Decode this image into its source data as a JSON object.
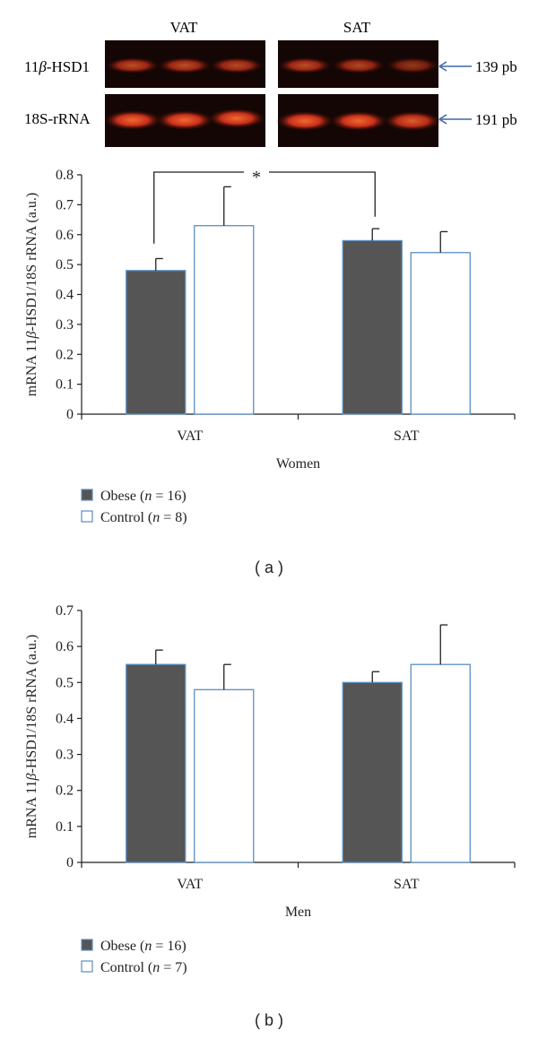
{
  "gel": {
    "lane_headers": [
      "VAT",
      "SAT"
    ],
    "rows": [
      {
        "prefix": "11",
        "italic": "β",
        "suffix": "-HSD1",
        "size_label": "139 pb"
      },
      {
        "prefix": "18S-rRNA",
        "italic": "",
        "suffix": "",
        "size_label": "191 pb"
      }
    ]
  },
  "colors": {
    "obese_fill": "#555555",
    "control_fill": "#ffffff",
    "bar_edge": "#5b8ec2",
    "axis": "#231f20",
    "gel_bg": "#140604",
    "band": "#d8321a",
    "arrow": "#3a66a8"
  },
  "chart_data": [
    {
      "type": "bar",
      "panel_label": "( a )",
      "ylabel_prefix": "mRNA 11",
      "ylabel_italic": "β",
      "ylabel_suffix": "-HSD1/18S rRNA (a.u.)",
      "xlabel": "Women",
      "categories": [
        "VAT",
        "SAT"
      ],
      "ylim": [
        0,
        0.8
      ],
      "yticks": [
        "0",
        "0.1",
        "0.2",
        "0.3",
        "0.4",
        "0.5",
        "0.6",
        "0.7",
        "0.8"
      ],
      "series": [
        {
          "name": "Obese",
          "n_label": "16",
          "values": [
            0.48,
            0.58
          ],
          "errors": [
            0.04,
            0.04
          ]
        },
        {
          "name": "Control",
          "n_label": "8",
          "values": [
            0.63,
            0.54
          ],
          "errors": [
            0.13,
            0.07
          ]
        }
      ],
      "significance": {
        "label": "*",
        "between": [
          "Obese VAT",
          "Obese SAT"
        ]
      },
      "legend": [
        {
          "name": "Obese",
          "n_prefix": "(",
          "n_italic": "n",
          "n_suffix": " = 16)"
        },
        {
          "name": "Control",
          "n_prefix": "(",
          "n_italic": "n",
          "n_suffix": " = 8)"
        }
      ]
    },
    {
      "type": "bar",
      "panel_label": "( b )",
      "ylabel_prefix": "mRNA 11",
      "ylabel_italic": "β",
      "ylabel_suffix": "-HSD1/18S rRNA (a.u.)",
      "xlabel": "Men",
      "categories": [
        "VAT",
        "SAT"
      ],
      "ylim": [
        0,
        0.7
      ],
      "yticks": [
        "0",
        "0.1",
        "0.2",
        "0.3",
        "0.4",
        "0.5",
        "0.6",
        "0.7"
      ],
      "series": [
        {
          "name": "Obese",
          "n_label": "16",
          "values": [
            0.55,
            0.5
          ],
          "errors": [
            0.04,
            0.03
          ]
        },
        {
          "name": "Control",
          "n_label": "7",
          "values": [
            0.48,
            0.55
          ],
          "errors": [
            0.07,
            0.11
          ]
        }
      ],
      "legend": [
        {
          "name": "Obese",
          "n_prefix": "(",
          "n_italic": "n",
          "n_suffix": " = 16)"
        },
        {
          "name": "Control",
          "n_prefix": "(",
          "n_italic": "n",
          "n_suffix": " = 7)"
        }
      ]
    }
  ]
}
